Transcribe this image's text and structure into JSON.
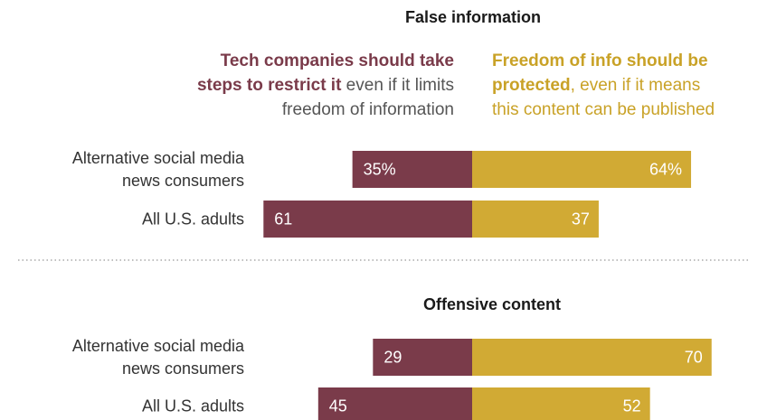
{
  "colors": {
    "restrict": "#7a3b4a",
    "freedom": "#d1aa34",
    "text": "#333333",
    "divider": "#999999"
  },
  "legend": {
    "restrict": {
      "line1_bold": "Tech companies should take",
      "line2_bold": "steps to restrict it",
      "line2_rest": " even if it limits",
      "line3": "freedom of information"
    },
    "freedom": {
      "line1_bold": "Freedom of info should be",
      "line2_bold": "protected",
      "line2_rest": ", even if it means",
      "line3": "this content can be published"
    }
  },
  "chart_data": [
    {
      "type": "bar",
      "orientation": "horizontal-diverging",
      "title": "False information",
      "categories": [
        "Alternative social media news consumers",
        "All U.S. adults"
      ],
      "category_lines": [
        [
          "Alternative social media",
          "news consumers"
        ],
        [
          "All U.S. adults"
        ]
      ],
      "series": [
        {
          "name": "Tech companies should take steps to restrict it even if it limits freedom of information",
          "values": [
            35,
            61
          ],
          "labels": [
            "35%",
            "61"
          ]
        },
        {
          "name": "Freedom of info should be protected, even if it means this content can be published",
          "values": [
            64,
            37
          ],
          "labels": [
            "64%",
            "37"
          ]
        }
      ]
    },
    {
      "type": "bar",
      "orientation": "horizontal-diverging",
      "title": "Offensive content",
      "categories": [
        "Alternative social media news consumers",
        "All U.S. adults"
      ],
      "category_lines": [
        [
          "Alternative social media",
          "news consumers"
        ],
        [
          "All U.S. adults"
        ]
      ],
      "series": [
        {
          "name": "Tech companies should take steps to restrict it even if it limits freedom of information",
          "values": [
            29,
            45
          ],
          "labels": [
            "29",
            "45"
          ]
        },
        {
          "name": "Freedom of info should be protected, even if it means this content can be published",
          "values": [
            70,
            52
          ],
          "labels": [
            "70",
            "52"
          ]
        }
      ]
    }
  ]
}
